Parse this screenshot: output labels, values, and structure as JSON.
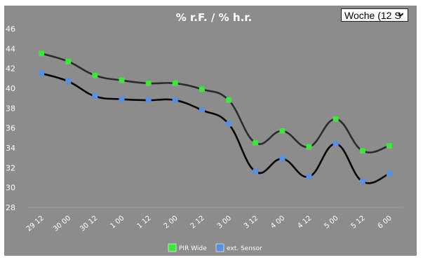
{
  "range_select": {
    "value": "Woche (12 S",
    "icon": "chevron-down-icon"
  },
  "colors": {
    "background": "#8c8c8c",
    "series_a": "#3fe43f",
    "series_b": "#5b8fe0",
    "line_a": "#2b2b2b",
    "line_b": "#050505"
  },
  "chart_data": {
    "type": "line",
    "title": "% r.F. / % h.r.",
    "xlabel": "",
    "ylabel": "",
    "categories": [
      "29 12",
      "30 00",
      "30 12",
      "1 00",
      "1 12",
      "2 00",
      "2 12",
      "3 00",
      "3 12",
      "4 00",
      "4 12",
      "5 00",
      "5 12",
      "6 00"
    ],
    "ylim": [
      28,
      46
    ],
    "yticks": [
      28,
      30,
      32,
      34,
      36,
      38,
      40,
      42,
      44,
      46
    ],
    "grid": false,
    "legend": "bottom",
    "series": [
      {
        "name": "PIR Wide",
        "color": "#3fe43f",
        "values": [
          43.5,
          42.7,
          41.3,
          40.8,
          40.5,
          40.5,
          39.9,
          38.8,
          34.5,
          35.7,
          34.1,
          36.9,
          33.7,
          34.2
        ]
      },
      {
        "name": "ext. Sensor",
        "color": "#5b8fe0",
        "values": [
          41.5,
          40.7,
          39.2,
          38.9,
          38.8,
          38.8,
          37.8,
          36.4,
          31.6,
          32.9,
          31.1,
          34.4,
          30.6,
          31.4
        ]
      }
    ]
  }
}
